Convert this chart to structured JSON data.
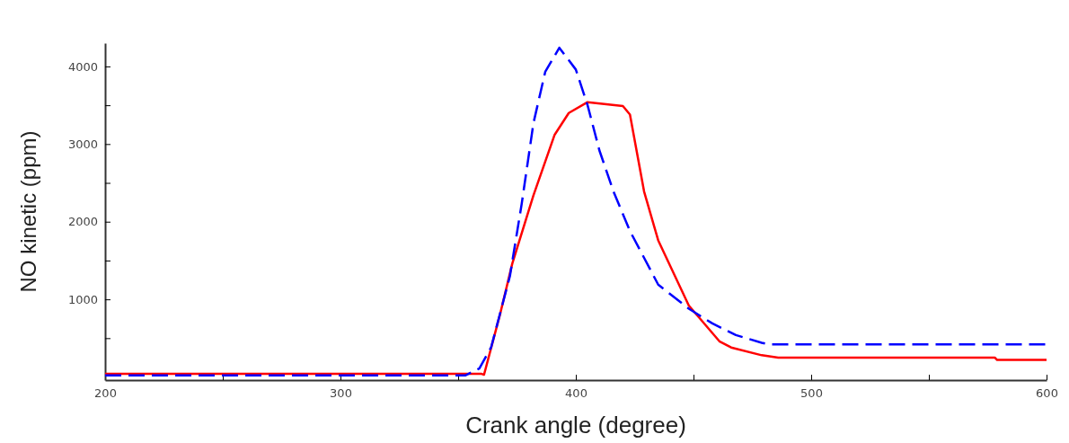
{
  "chart_data": {
    "type": "line",
    "xlabel": "Crank angle (degree)",
    "ylabel": "NO kinetic (ppm)",
    "xlim": [
      200,
      600
    ],
    "xticks": [
      200,
      {
        "value": 250,
        "label": null
      },
      300,
      {
        "value": 350,
        "label": null
      },
      400,
      {
        "value": 450,
        "label": null
      },
      500,
      {
        "value": 550,
        "label": null
      },
      600
    ],
    "ylim": [
      -40,
      4300
    ],
    "yticks": [
      {
        "value": 500,
        "label": null
      },
      1000,
      {
        "value": 1500,
        "label": null
      },
      2000,
      {
        "value": 2500,
        "label": null
      },
      3000,
      {
        "value": 3500,
        "label": null
      },
      4000
    ],
    "grid": false,
    "series": [
      {
        "color": "#ff0000",
        "line_style": "solid",
        "x": [
          200,
          360,
          361,
          368,
          373,
          382,
          391,
          397,
          405,
          420,
          423,
          429,
          435,
          448,
          461,
          466,
          479,
          486,
          578,
          579,
          600
        ],
        "values": [
          40,
          40,
          30,
          830,
          1460,
          2340,
          3120,
          3400,
          3540,
          3490,
          3380,
          2390,
          1760,
          920,
          460,
          380,
          280,
          250,
          250,
          220,
          220
        ]
      },
      {
        "color": "#0000ff",
        "line_style": "dashed",
        "x": [
          200,
          353,
          359,
          364,
          372,
          377,
          382,
          387,
          393,
          400,
          405,
          410,
          416,
          423,
          435,
          448,
          458,
          468,
          479,
          482,
          600
        ],
        "values": [
          20,
          20,
          110,
          380,
          1300,
          2230,
          3270,
          3930,
          4240,
          3960,
          3500,
          2920,
          2390,
          1880,
          1190,
          880,
          690,
          540,
          440,
          420,
          420
        ]
      }
    ]
  }
}
